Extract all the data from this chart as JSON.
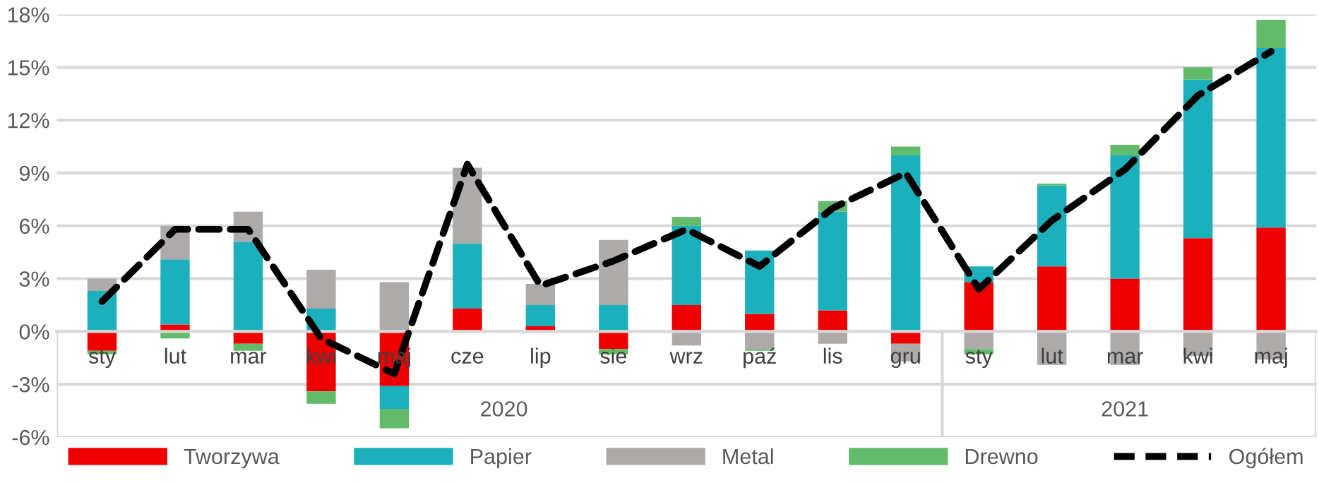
{
  "chart_data": {
    "type": "bar",
    "stacked": true,
    "categories": [
      "sty",
      "lut",
      "mar",
      "kwi",
      "maj",
      "cze",
      "lip",
      "sie",
      "wrz",
      "paź",
      "lis",
      "gru",
      "sty",
      "lut",
      "mar",
      "kwi",
      "maj"
    ],
    "series": [
      {
        "name": "Tworzywa",
        "color": "#ee0000",
        "values": [
          -1.1,
          0.4,
          -0.7,
          -3.4,
          -3.1,
          1.3,
          0.3,
          -1.0,
          1.5,
          1.0,
          1.2,
          -0.7,
          2.8,
          3.7,
          3.0,
          5.3,
          5.9
        ]
      },
      {
        "name": "Papier",
        "color": "#1bb0bc",
        "values": [
          2.3,
          3.7,
          5.1,
          1.3,
          -1.3,
          3.7,
          1.2,
          1.5,
          4.5,
          3.6,
          5.6,
          10.0,
          0.9,
          4.6,
          7.0,
          9.0,
          10.2
        ]
      },
      {
        "name": "Metal",
        "color": "#aeaaaa",
        "values": [
          0.7,
          1.9,
          1.7,
          2.2,
          2.8,
          4.3,
          1.2,
          3.7,
          -0.8,
          -1.0,
          -0.7,
          -1.0,
          -1.0,
          -1.9,
          -1.9,
          -1.4,
          -1.6
        ]
      },
      {
        "name": "Drewno",
        "color": "#62bb6a",
        "values": [
          -0.2,
          -0.4,
          -0.4,
          -0.7,
          -1.1,
          null,
          null,
          -0.3,
          0.5,
          -0.1,
          0.6,
          0.5,
          -0.3,
          0.1,
          0.6,
          0.7,
          1.6
        ]
      },
      {
        "name": "Ogółem",
        "type": "line",
        "color": "#000000",
        "line_style": "dashed",
        "values": [
          1.7,
          5.8,
          5.8,
          -0.4,
          -2.4,
          9.5,
          2.6,
          4.0,
          5.8,
          3.7,
          7.0,
          9.0,
          2.4,
          6.3,
          9.2,
          13.4,
          15.9
        ]
      }
    ],
    "ylim": [
      -6,
      18
    ],
    "yticks": [
      {
        "value": -6,
        "label": "-6%"
      },
      {
        "value": -3,
        "label": "-3%"
      },
      {
        "value": 0,
        "label": "0%"
      },
      {
        "value": 3,
        "label": "3%"
      },
      {
        "value": 6,
        "label": "6%"
      },
      {
        "value": 9,
        "label": "9%"
      },
      {
        "value": 12,
        "label": "12%"
      },
      {
        "value": 15,
        "label": "15%"
      },
      {
        "value": 18,
        "label": "18%"
      }
    ],
    "grid": "y",
    "legend": "bottom",
    "annotations": [
      "2020",
      "2021"
    ]
  }
}
